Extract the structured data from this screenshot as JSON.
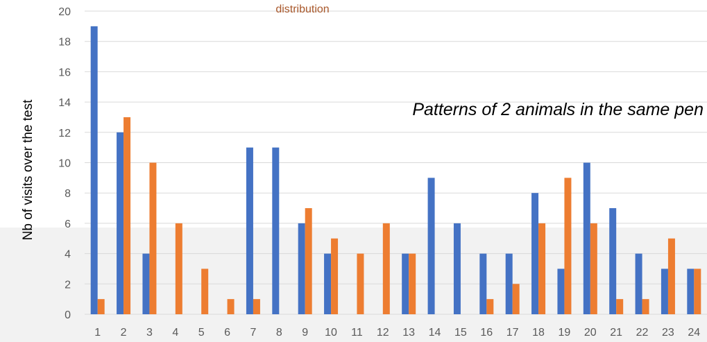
{
  "chart_data": {
    "type": "bar",
    "title": "",
    "xlabel": "",
    "ylabel": "Nb of visits over the test",
    "ylim": [
      0,
      20
    ],
    "yticks": [
      0,
      2,
      4,
      6,
      8,
      10,
      12,
      14,
      16,
      18,
      20
    ],
    "grid": true,
    "categories": [
      "1",
      "2",
      "3",
      "4",
      "5",
      "6",
      "7",
      "8",
      "9",
      "10",
      "11",
      "12",
      "13",
      "14",
      "15",
      "16",
      "17",
      "18",
      "19",
      "20",
      "21",
      "22",
      "23",
      "24"
    ],
    "series": [
      {
        "color": "#4472c4",
        "values": [
          19,
          12,
          4,
          0,
          0,
          0,
          11,
          11,
          6,
          4,
          0,
          0,
          4,
          9,
          6,
          4,
          4,
          8,
          3,
          10,
          7,
          4,
          3,
          3
        ]
      },
      {
        "color": "#ed7d31",
        "values": [
          1,
          13,
          10,
          6,
          3,
          1,
          1,
          0,
          7,
          5,
          4,
          6,
          4,
          0,
          0,
          1,
          2,
          6,
          9,
          6,
          1,
          1,
          5,
          3
        ]
      }
    ],
    "annotations": [
      "Patterns of 2 animals in the same pen",
      "distribution"
    ]
  },
  "colors": {
    "gridline": "#d9d9d9",
    "shaded_band": "#f2f2f2",
    "axis_text": "#595959",
    "top_note": "#a9582b"
  }
}
